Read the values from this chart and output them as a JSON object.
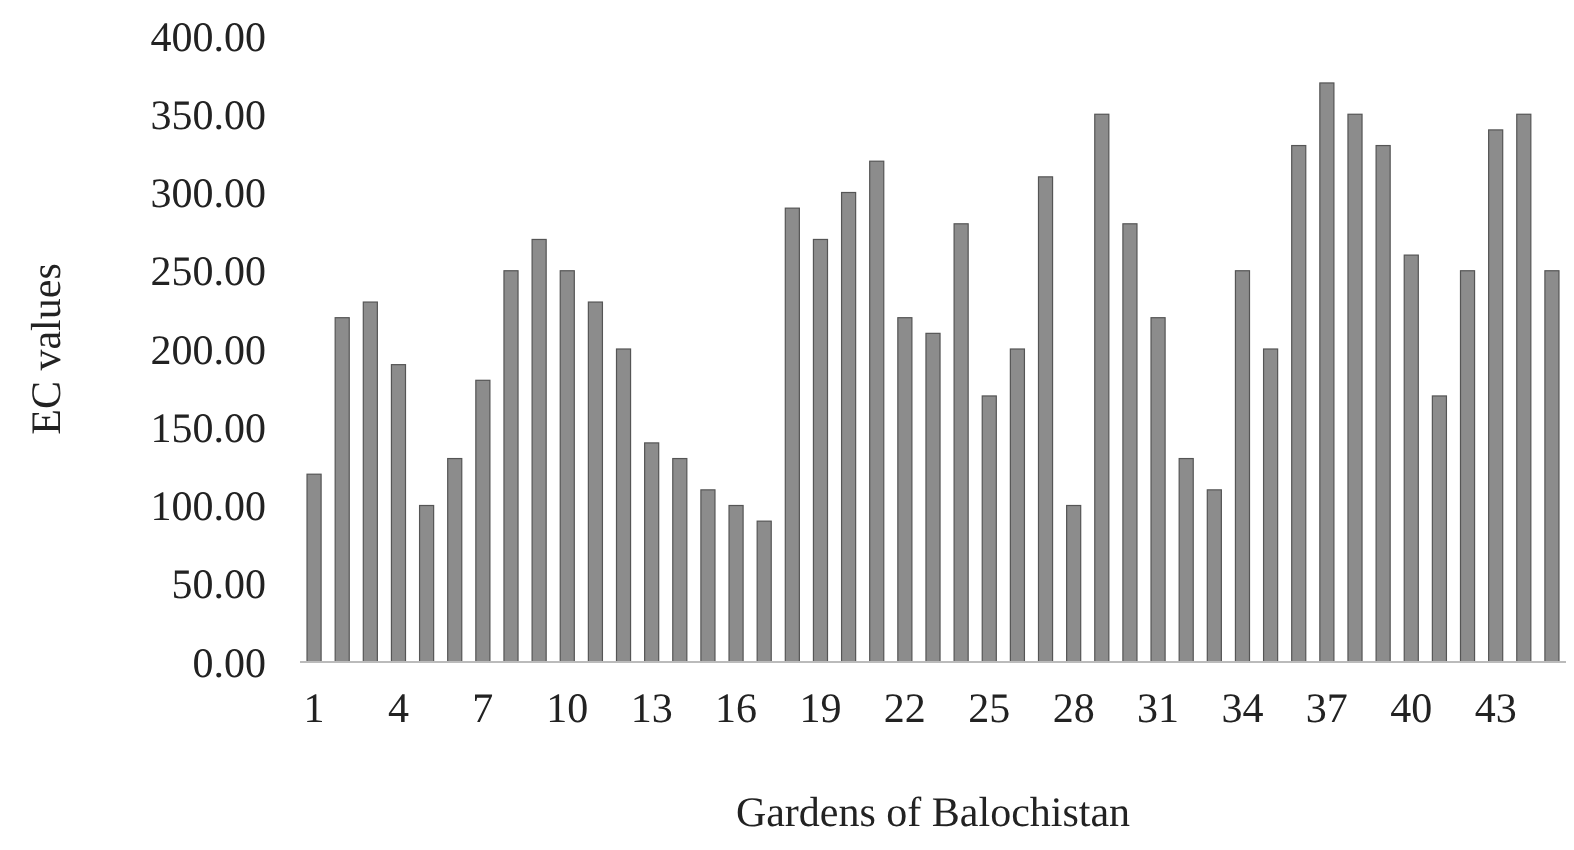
{
  "chart_data": {
    "type": "bar",
    "xlabel": "Gardens of Balochistan",
    "ylabel": "EC values",
    "categories": [
      "1",
      null,
      null,
      "4",
      null,
      null,
      "7",
      null,
      null,
      "10",
      null,
      null,
      "13",
      null,
      null,
      "16",
      null,
      null,
      "19",
      null,
      null,
      "22",
      null,
      null,
      "25",
      null,
      null,
      "28",
      null,
      null,
      "31",
      null,
      null,
      "34",
      null,
      null,
      "37",
      null,
      null,
      "40",
      null,
      null,
      "43",
      null,
      null
    ],
    "values": [
      120,
      220,
      230,
      190,
      100,
      130,
      180,
      250,
      270,
      250,
      230,
      200,
      140,
      130,
      110,
      100,
      90,
      290,
      270,
      300,
      320,
      220,
      210,
      280,
      170,
      200,
      310,
      100,
      350,
      280,
      220,
      130,
      110,
      250,
      200,
      330,
      370,
      350,
      330,
      260,
      170,
      250,
      340,
      350,
      250
    ],
    "color": "#8c8c8c",
    "ylim": [
      0,
      400
    ],
    "yticks": [
      {
        "value": 0,
        "label": "0.00"
      },
      {
        "value": 50,
        "label": "50.00"
      },
      {
        "value": 100,
        "label": "100.00"
      },
      {
        "value": 150,
        "label": "150.00"
      },
      {
        "value": 200,
        "label": "200.00"
      },
      {
        "value": 250,
        "label": "250.00"
      },
      {
        "value": 300,
        "label": "300.00"
      },
      {
        "value": 350,
        "label": "350.00"
      },
      {
        "value": 400,
        "label": "400.00"
      }
    ],
    "grid": false
  }
}
